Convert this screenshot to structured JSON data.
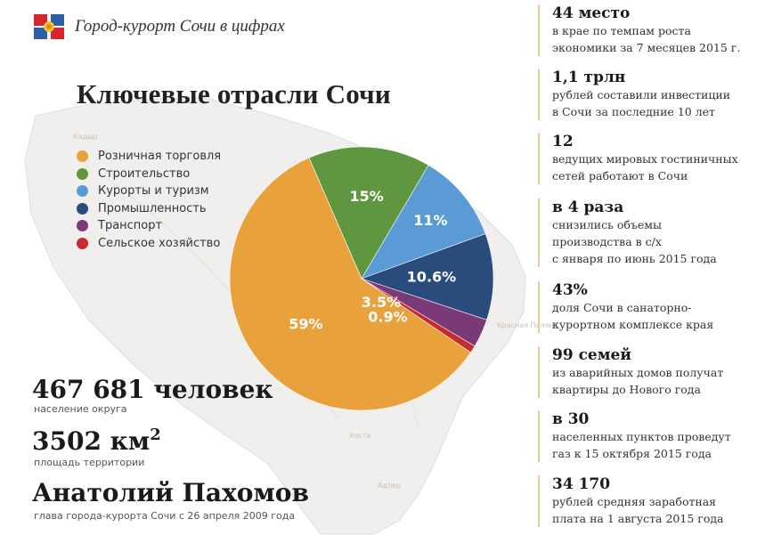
{
  "header": {
    "title": "Город-курорт Сочи в цифрах",
    "icon": "sochi-flag-icon"
  },
  "map_labels": [
    "Красная Поляна",
    "Хоста",
    "Адлер",
    "Кадыр"
  ],
  "chart_data": {
    "type": "pie",
    "title": "Ключевые отрасли Сочи",
    "series": [
      {
        "name": "Розничная торговля",
        "value": 59,
        "label": "59%",
        "color": "#e9a23b"
      },
      {
        "name": "Строительство",
        "value": 15,
        "label": "15%",
        "color": "#5f9741"
      },
      {
        "name": "Курорты и туризм",
        "value": 11,
        "label": "11%",
        "color": "#5b9bd5"
      },
      {
        "name": "Промышленность",
        "value": 10.6,
        "label": "10.6%",
        "color": "#2a4c7d"
      },
      {
        "name": "Транспорт",
        "value": 3.5,
        "label": "3.5%",
        "color": "#7a3a78"
      },
      {
        "name": "Сельское хозяйство",
        "value": 0.9,
        "label": "0.9%",
        "color": "#c62c2c"
      }
    ],
    "legend_position": "top-left"
  },
  "stats": {
    "population_value": "467 681 человек",
    "population_label": "население округа",
    "area_value": "3502 км",
    "area_sup": "2",
    "area_label": "площадь территории",
    "mayor_name": "Анатолий Пахомов",
    "mayor_label": "глава города-курорта Сочи с 26 апреля 2009 года"
  },
  "facts": [
    {
      "value": "44 место",
      "lines": [
        "в крае по темпам роста",
        "экономики за 7 месяцев 2015 г."
      ]
    },
    {
      "value": "1,1 трлн",
      "lines": [
        "рублей составили инвестиции",
        "в Сочи за последние 10 лет"
      ]
    },
    {
      "value": "12",
      "lines": [
        "ведущих мировых гостиничных",
        "сетей работают в Сочи"
      ]
    },
    {
      "value": "в 4 раза",
      "lines": [
        "снизились объемы",
        "производства в с/х",
        "с января по июнь 2015 года"
      ]
    },
    {
      "value": "43%",
      "lines": [
        "доля Сочи в санаторно-",
        "курортном комплексе края"
      ]
    },
    {
      "value": "99 семей",
      "lines": [
        "из аварийных домов получат",
        "квартиры до Нового года"
      ]
    },
    {
      "value": "в 30",
      "lines": [
        "населенных пунктов проведут",
        "газ к 15 октября 2015 года"
      ]
    },
    {
      "value": "34 170",
      "lines": [
        "рублей средняя заработная",
        "плата на 1 августа 2015 года"
      ]
    }
  ]
}
